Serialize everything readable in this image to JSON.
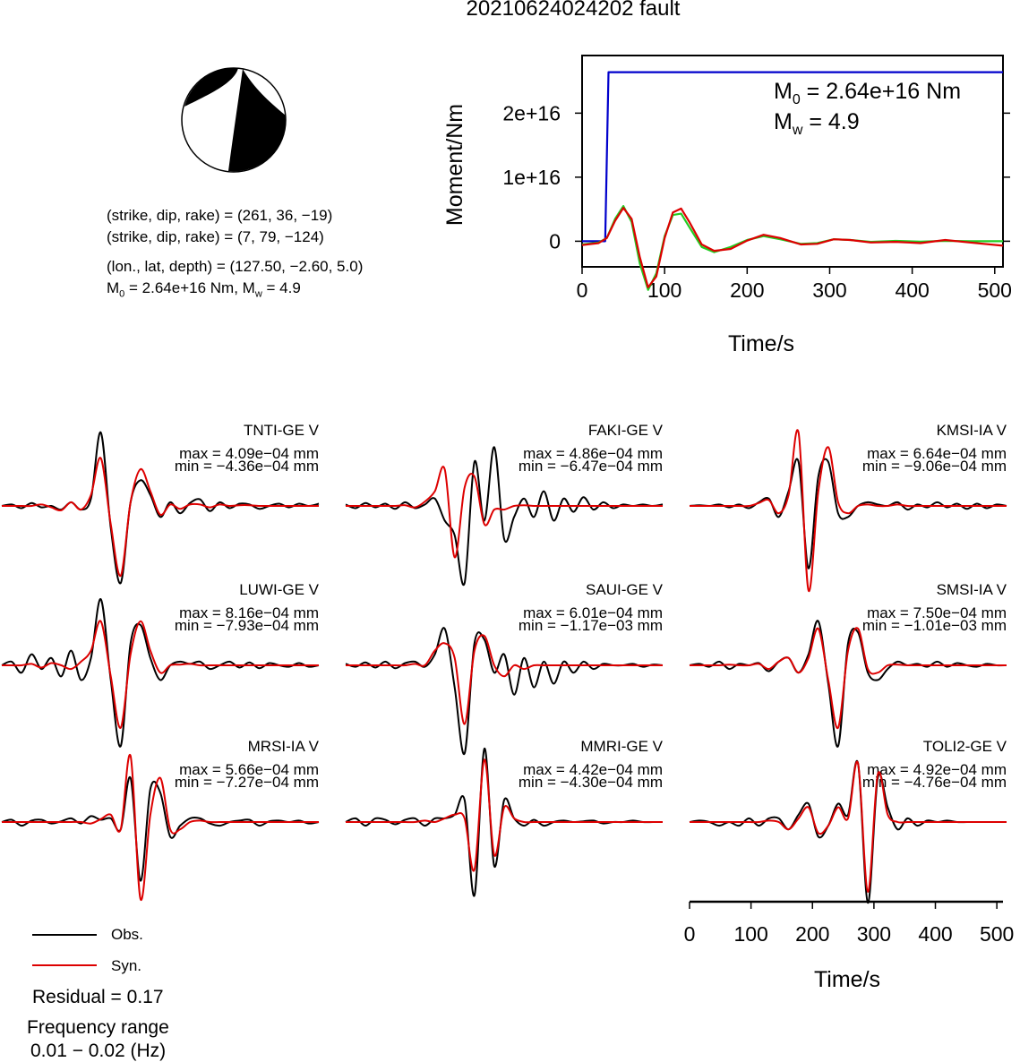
{
  "title": "20210624024202 fault",
  "mechanism": {
    "line1": "(strike, dip, rake) = (261, 36, −19)",
    "line2": "(strike, dip, rake) = (7, 79, −124)",
    "line3": "(lon., lat, depth) = (127.50, −2.60, 5.0)",
    "line4_prefix": "M",
    "line4_sub": "0",
    "line4_mid": " = 2.64e+16 Nm, M",
    "line4_sub2": "w",
    "line4_suffix": " = 4.9",
    "colors": {
      "fill": "#000000",
      "blank": "#ffffff"
    }
  },
  "chart_data": [
    {
      "type": "line",
      "xlabel": "Time/s",
      "ylabel": "Moment/Nm",
      "xlim": [
        0,
        510
      ],
      "ylim": [
        -4000000000000000.0,
        2.9e+16
      ],
      "x_ticks": [
        "0",
        "100",
        "200",
        "300",
        "400",
        "500"
      ],
      "y_ticks": [
        "0",
        "1e+16",
        "2e+16"
      ],
      "annotation_m0": {
        "prefix": "M",
        "sub": "0",
        "value": " = 2.64e+16 Nm"
      },
      "annotation_mw": {
        "prefix": "M",
        "sub": "w",
        "value": " = 4.9"
      },
      "series": [
        {
          "color": "#0000cc",
          "points": [
            [
              0,
              0
            ],
            [
              28,
              0
            ],
            [
              32,
              2.64e+16
            ],
            [
              510,
              2.64e+16
            ]
          ]
        },
        {
          "color": "#22cc22",
          "points": [
            [
              0,
              -500000000000000.0
            ],
            [
              20,
              -200000000000000.0
            ],
            [
              30,
              500000000000000.0
            ],
            [
              40,
              3500000000000000.0
            ],
            [
              50,
              5500000000000000.0
            ],
            [
              60,
              3000000000000000.0
            ],
            [
              70,
              -3500000000000000.0
            ],
            [
              80,
              -7600000000000000.0
            ],
            [
              90,
              -5000000000000000.0
            ],
            [
              100,
              800000000000000.0
            ],
            [
              110,
              4100000000000000.0
            ],
            [
              120,
              4300000000000000.0
            ],
            [
              130,
              2200000000000000.0
            ],
            [
              145,
              -900000000000000.0
            ],
            [
              160,
              -1700000000000000.0
            ],
            [
              180,
              -900000000000000.0
            ],
            [
              200,
              200000000000000.0
            ],
            [
              220,
              800000000000000.0
            ],
            [
              240,
              300000000000000.0
            ],
            [
              265,
              -400000000000000.0
            ],
            [
              285,
              -300000000000000.0
            ],
            [
              305,
              300000000000000.0
            ],
            [
              325,
              200000000000000.0
            ],
            [
              350,
              -100000000000000.0
            ],
            [
              380,
              50000000000000.0
            ],
            [
              410,
              -50000000000000.0
            ],
            [
              440,
              50000000000000.0
            ],
            [
              470,
              0
            ],
            [
              510,
              0
            ]
          ]
        },
        {
          "color": "#dd0000",
          "points": [
            [
              0,
              -600000000000000.0
            ],
            [
              20,
              -300000000000000.0
            ],
            [
              30,
              500000000000000.0
            ],
            [
              40,
              3200000000000000.0
            ],
            [
              50,
              5200000000000000.0
            ],
            [
              60,
              3500000000000000.0
            ],
            [
              70,
              -2500000000000000.0
            ],
            [
              80,
              -7200000000000000.0
            ],
            [
              90,
              -5500000000000000.0
            ],
            [
              100,
              500000000000000.0
            ],
            [
              110,
              4500000000000000.0
            ],
            [
              120,
              5100000000000000.0
            ],
            [
              130,
              3000000000000000.0
            ],
            [
              145,
              -500000000000000.0
            ],
            [
              160,
              -1500000000000000.0
            ],
            [
              180,
              -1200000000000000.0
            ],
            [
              200,
              100000000000000.0
            ],
            [
              220,
              1000000000000000.0
            ],
            [
              240,
              500000000000000.0
            ],
            [
              265,
              -500000000000000.0
            ],
            [
              285,
              -400000000000000.0
            ],
            [
              305,
              300000000000000.0
            ],
            [
              325,
              200000000000000.0
            ],
            [
              350,
              -200000000000000.0
            ],
            [
              380,
              -100000000000000.0
            ],
            [
              410,
              -300000000000000.0
            ],
            [
              440,
              200000000000000.0
            ],
            [
              470,
              -200000000000000.0
            ],
            [
              510,
              -700000000000000.0
            ]
          ]
        }
      ]
    },
    {
      "type": "line",
      "xlabel": "Time/s",
      "xlim": [
        0,
        510
      ],
      "x_ticks": [
        "0",
        "100",
        "200",
        "300",
        "400",
        "500"
      ],
      "traces": [
        {
          "station": "TNTI-GE V",
          "max": "max = 4.09e−04 mm",
          "min": "min = −4.36e−04 mm",
          "obs": [
            0,
            0.02,
            -0.03,
            0.04,
            -0.02,
            0,
            -0.05,
            0.05,
            -0.05,
            0.1,
            1.0,
            -0.3,
            -1.05,
            0.05,
            0.35,
            0.15,
            -0.15,
            0.05,
            -0.1,
            0.04,
            0.09,
            -0.07,
            0.05,
            -0.03,
            0.03,
            0.02,
            -0.04,
            0,
            0.03,
            -0.02,
            0.03,
            0,
            0.03
          ],
          "syn": [
            0,
            0,
            0,
            0,
            0.02,
            -0.02,
            -0.06,
            0.05,
            -0.05,
            0.15,
            0.65,
            -0.25,
            -0.95,
            0.05,
            0.5,
            0.2,
            -0.12,
            0.02,
            -0.04,
            0.02,
            0.02,
            -0.02,
            0.02,
            0,
            0.01,
            0.01,
            0,
            0,
            0,
            0,
            0,
            0,
            0
          ]
        },
        {
          "station": "FAKI-GE V",
          "max": "max = 4.86e−04 mm",
          "min": "min = −6.47e−04 mm",
          "obs": [
            0.02,
            -0.03,
            0.04,
            -0.02,
            0.03,
            -0.04,
            0.05,
            -0.03,
            0.02,
            0.1,
            -0.2,
            -0.4,
            -1.05,
            0.6,
            -0.2,
            0.8,
            -0.45,
            -0.15,
            0.1,
            -0.15,
            0.2,
            -0.2,
            0.1,
            -0.08,
            0.12,
            -0.05,
            0.05,
            -0.03,
            0.02,
            0,
            0.02,
            0,
            0.02
          ],
          "syn": [
            0,
            0,
            0,
            0,
            0,
            0,
            0.01,
            -0.02,
            0.06,
            0.2,
            0.5,
            -0.7,
            0.25,
            0.4,
            -0.25,
            -0.05,
            -0.05,
            0,
            0.01,
            0,
            0,
            0,
            0,
            0,
            0,
            0,
            0,
            0,
            0,
            0,
            0,
            0,
            0
          ]
        },
        {
          "station": "KMSI-IA V",
          "max": "max = 6.64e−04 mm",
          "min": "min = −9.06e−04 mm",
          "obs": [
            0,
            0.01,
            0,
            0.02,
            -0.02,
            0.02,
            -0.03,
            0.05,
            0.1,
            -0.15,
            0.2,
            0.6,
            -0.85,
            0.4,
            0.6,
            -0.1,
            -0.15,
            0,
            0.05,
            0.02,
            0,
            0.05,
            -0.05,
            0.02,
            -0.02,
            0.05,
            -0.02,
            0.03,
            -0.04,
            0.03,
            -0.03,
            0.02,
            0
          ],
          "syn": [
            0,
            0,
            0,
            0,
            0,
            0,
            0,
            0.04,
            0.08,
            -0.1,
            0.15,
            1.0,
            -1.15,
            0.2,
            0.8,
            0.05,
            -0.1,
            0,
            0.02,
            0,
            0,
            0.02,
            0,
            0,
            0,
            0,
            0,
            0,
            0,
            0,
            0,
            0,
            0
          ]
        },
        {
          "station": "LUWI-GE V",
          "max": "max = 8.16e−04 mm",
          "min": "min = −7.93e−04 mm",
          "obs": [
            0,
            0.05,
            -0.1,
            0.15,
            -0.05,
            0.1,
            -0.15,
            0.2,
            -0.2,
            0.1,
            0.9,
            -0.2,
            -1.1,
            0.3,
            0.55,
            0.1,
            -0.2,
            0,
            0.05,
            0.02,
            0.05,
            -0.05,
            0,
            0.05,
            -0.03,
            0.04,
            -0.04,
            0.03,
            0,
            -0.02,
            0.03,
            -0.02,
            0
          ],
          "syn": [
            0,
            0,
            0,
            0.02,
            -0.03,
            0.03,
            0,
            -0.05,
            0.05,
            0.2,
            0.6,
            -0.15,
            -0.85,
            0.15,
            0.6,
            0.2,
            -0.1,
            0,
            0.01,
            0.02,
            0,
            0,
            0,
            0,
            0,
            0,
            0,
            0,
            0,
            0,
            0,
            0,
            0
          ]
        },
        {
          "station": "SAUI-GE V",
          "max": "max = 6.01e−04 mm",
          "min": "min = −1.17e−03 mm",
          "obs": [
            0.02,
            -0.02,
            0.04,
            -0.03,
            0.05,
            -0.04,
            0.03,
            0.05,
            -0.02,
            0.15,
            0.5,
            -0.3,
            -1.2,
            0.3,
            0.35,
            -0.1,
            0.15,
            -0.4,
            0.1,
            -0.3,
            0.05,
            -0.25,
            0.05,
            -0.1,
            0.05,
            -0.05,
            0.02,
            0,
            0,
            0.02,
            -0.02,
            0.01,
            0
          ],
          "syn": [
            0,
            0,
            0,
            0,
            0,
            0,
            0,
            0.02,
            0,
            0.2,
            0.3,
            0.1,
            -0.8,
            0.2,
            0.4,
            0,
            -0.15,
            0,
            -0.05,
            0,
            0,
            0,
            0,
            0,
            0,
            0,
            0,
            0,
            0,
            0,
            0,
            0,
            0
          ]
        },
        {
          "station": "SMSI-IA V",
          "max": "max = 7.50e−04 mm",
          "min": "min = −1.01e−03 mm",
          "obs": [
            0,
            0.02,
            -0.02,
            0.05,
            -0.05,
            0.02,
            0,
            0.03,
            -0.08,
            0.05,
            0.1,
            -0.1,
            0.15,
            0.6,
            -0.25,
            -1.1,
            0.3,
            0.45,
            -0.1,
            -0.2,
            -0.05,
            0.05,
            0,
            0.02,
            -0.02,
            0.05,
            -0.02,
            0.03,
            0,
            -0.02,
            0.02,
            0,
            0
          ],
          "syn": [
            0,
            0,
            0,
            0,
            0.01,
            0,
            0,
            0.02,
            -0.05,
            0.05,
            0.1,
            -0.1,
            0.1,
            0.5,
            -0.2,
            -0.85,
            0.2,
            0.5,
            -0.05,
            -0.1,
            0,
            0.01,
            0,
            0,
            0,
            0,
            0,
            0,
            0,
            0,
            0,
            0,
            0
          ]
        },
        {
          "station": "MRSI-IA V",
          "max": "max = 5.66e−04 mm",
          "min": "min = −7.27e−04 mm",
          "obs": [
            0,
            0.03,
            -0.05,
            0.02,
            0.03,
            -0.02,
            0.01,
            0.05,
            -0.02,
            0.08,
            0.03,
            0.05,
            -0.1,
            0.6,
            -0.8,
            0.45,
            0.4,
            -0.2,
            -0.05,
            0.05,
            0.05,
            -0.02,
            -0.05,
            0,
            0.02,
            0.03,
            -0.05,
            0.01,
            0.02,
            0,
            0.02,
            -0.02,
            0
          ],
          "syn": [
            0,
            0,
            0,
            0,
            0,
            0,
            0,
            0,
            0,
            -0.02,
            0.04,
            0.1,
            -0.1,
            0.9,
            -1.05,
            0.1,
            0.6,
            -0.1,
            -0.1,
            0,
            0.02,
            0,
            0,
            0,
            0,
            0,
            0,
            0,
            0,
            0,
            0,
            0,
            0
          ]
        },
        {
          "station": "MMRI-GE V",
          "max": "max = 4.42e−04 mm",
          "min": "min = −4.30e−04 mm",
          "obs": [
            0,
            0.05,
            -0.05,
            0.05,
            0.03,
            -0.03,
            0.03,
            0.05,
            -0.05,
            0.05,
            0.05,
            0.1,
            0.3,
            -1.0,
            1.0,
            -0.6,
            0.3,
            0.05,
            -0.05,
            0.03,
            -0.05,
            0,
            0.02,
            0,
            0.01,
            0.02,
            -0.02,
            0,
            0,
            0.02,
            0,
            0,
            0
          ],
          "syn": [
            0,
            0,
            0,
            0,
            0,
            0,
            0,
            0,
            0.02,
            0,
            0.05,
            0.1,
            0.05,
            -0.65,
            0.85,
            -0.45,
            0.2,
            0.05,
            0,
            0,
            0,
            0,
            0,
            0,
            0,
            0,
            0,
            0,
            0,
            0,
            0,
            0,
            0
          ]
        },
        {
          "station": "TOLI2-GE V",
          "max": "max = 4.92e−04 mm",
          "min": "min = −4.76e−04 mm",
          "obs": [
            0,
            0.02,
            0,
            -0.05,
            0,
            -0.05,
            0.05,
            -0.05,
            0.05,
            0.05,
            -0.1,
            0.1,
            0.25,
            -0.2,
            -0.05,
            0.25,
            0.1,
            0.8,
            -1.1,
            0.6,
            0.2,
            -0.1,
            0.05,
            -0.05,
            0.02,
            0,
            0.02,
            0,
            0,
            0,
            0,
            0,
            0
          ],
          "syn": [
            0,
            0,
            0,
            0,
            0,
            0,
            0,
            0,
            0.02,
            0,
            -0.1,
            0.05,
            0.2,
            -0.15,
            -0.05,
            0.2,
            0.05,
            0.8,
            -0.95,
            0.65,
            0.1,
            0,
            0,
            0,
            0,
            0,
            0,
            0,
            0,
            0,
            0,
            0,
            0
          ]
        }
      ],
      "colors": {
        "obs": "#000000",
        "syn": "#dd0000"
      }
    }
  ],
  "legend": {
    "obs_label": "Obs.",
    "syn_label": "Syn."
  },
  "footer": {
    "residual": "Residual = 0.17",
    "freq_title": "Frequency range",
    "freq_range": "0.01 − 0.02 (Hz)"
  }
}
